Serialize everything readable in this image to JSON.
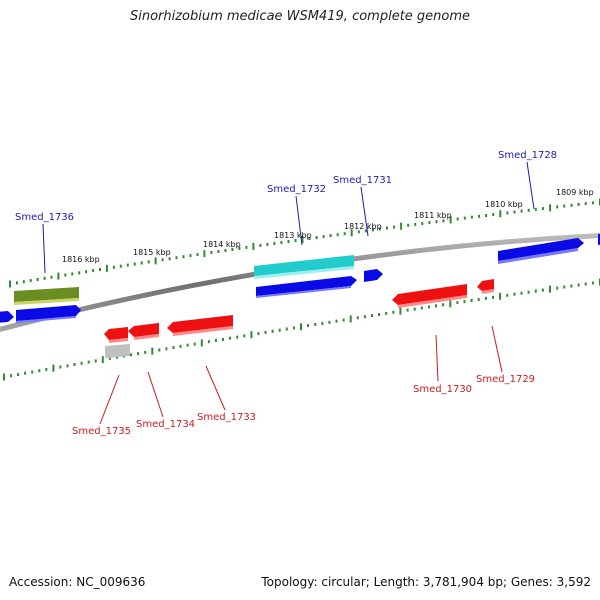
{
  "title": "Sinorhizobium medicae WSM419, complete genome",
  "footer": {
    "accession": "Accession: NC_009636",
    "topology": "Topology: circular; Length: 3,781,904 bp; Genes: 3,592"
  },
  "colors": {
    "backbone": "#888888",
    "tick": "#2e8b2e",
    "forward_label": "#1c1cb4",
    "reverse_label": "#cc1c1c",
    "blue": "#0a0ae6",
    "red": "#ee1111",
    "cyan": "#22cccc",
    "olive": "#6b8e23",
    "gray": "#c0c0c0"
  },
  "kbp_labels": [
    "1809 kbp",
    "1810 kbp",
    "1811 kbp",
    "1812 kbp",
    "1813 kbp",
    "1814 kbp",
    "1815 kbp",
    "1816 kbp"
  ],
  "gene_labels": {
    "forward": [
      "Smed_1736",
      "Smed_1732",
      "Smed_1731",
      "Smed_1728"
    ],
    "reverse": [
      "Smed_1735",
      "Smed_1734",
      "Smed_1733",
      "Smed_1730",
      "Smed_1729"
    ]
  }
}
